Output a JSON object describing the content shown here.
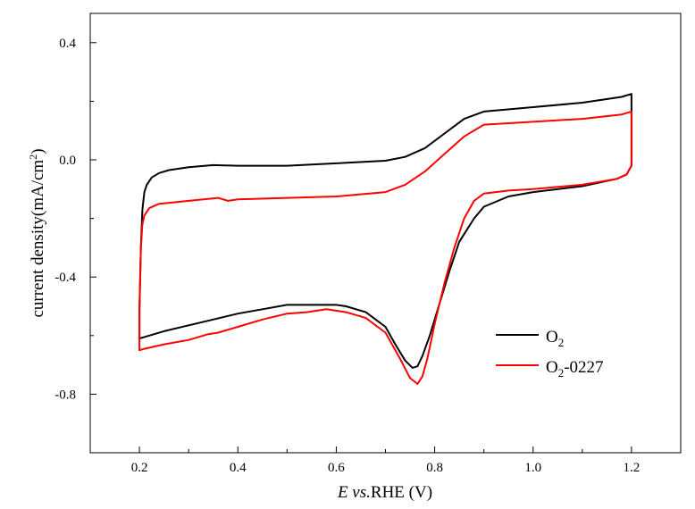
{
  "chart_data": {
    "type": "line",
    "title": "",
    "xlabel": {
      "italic": "E vs.",
      "rest": "RHE (V)"
    },
    "ylabel": {
      "main": "current density(mA/cm",
      "sup": "2",
      "close": ")"
    },
    "xlim": [
      0.1,
      1.3
    ],
    "ylim": [
      -1.0,
      0.5
    ],
    "xticks": [
      "0.2",
      "0.4",
      "0.6",
      "0.8",
      "1.0",
      "1.2"
    ],
    "yticks": [
      "0.4",
      "0.0",
      "-0.4",
      "-0.8"
    ],
    "grid": false,
    "legend_position": "lower-right",
    "series": [
      {
        "name": "O2",
        "legend": {
          "main": "O",
          "sub": "2",
          "suffix": ""
        },
        "color": "#000000",
        "x": [
          0.2,
          0.203,
          0.206,
          0.21,
          0.215,
          0.225,
          0.24,
          0.26,
          0.3,
          0.35,
          0.4,
          0.5,
          0.6,
          0.7,
          0.74,
          0.78,
          0.82,
          0.86,
          0.9,
          1.0,
          1.1,
          1.18,
          1.2,
          1.2,
          1.2,
          1.19,
          1.17,
          1.1,
          1.0,
          0.95,
          0.9,
          0.88,
          0.85,
          0.83,
          0.81,
          0.79,
          0.775,
          0.765,
          0.755,
          0.74,
          0.72,
          0.7,
          0.66,
          0.62,
          0.6,
          0.55,
          0.5,
          0.45,
          0.4,
          0.35,
          0.3,
          0.25,
          0.22,
          0.2,
          0.2
        ],
        "y": [
          -0.52,
          -0.3,
          -0.17,
          -0.11,
          -0.085,
          -0.06,
          -0.045,
          -0.035,
          -0.025,
          -0.018,
          -0.02,
          -0.02,
          -0.012,
          -0.003,
          0.01,
          0.04,
          0.09,
          0.14,
          0.165,
          0.18,
          0.195,
          0.215,
          0.225,
          0.1,
          -0.02,
          -0.05,
          -0.065,
          -0.09,
          -0.11,
          -0.125,
          -0.16,
          -0.2,
          -0.28,
          -0.38,
          -0.49,
          -0.6,
          -0.67,
          -0.705,
          -0.71,
          -0.685,
          -0.63,
          -0.57,
          -0.52,
          -0.5,
          -0.495,
          -0.495,
          -0.495,
          -0.51,
          -0.525,
          -0.545,
          -0.565,
          -0.585,
          -0.6,
          -0.61,
          -0.52
        ]
      },
      {
        "name": "O2-0227",
        "legend": {
          "main": "O",
          "sub": "2",
          "suffix": "-0227"
        },
        "color": "#ff0000",
        "x": [
          0.2,
          0.203,
          0.206,
          0.21,
          0.22,
          0.24,
          0.27,
          0.3,
          0.33,
          0.36,
          0.38,
          0.4,
          0.5,
          0.6,
          0.7,
          0.74,
          0.78,
          0.82,
          0.86,
          0.9,
          1.0,
          1.1,
          1.18,
          1.2,
          1.2,
          1.2,
          1.19,
          1.17,
          1.1,
          1.0,
          0.95,
          0.9,
          0.88,
          0.86,
          0.84,
          0.82,
          0.8,
          0.785,
          0.775,
          0.765,
          0.75,
          0.73,
          0.7,
          0.66,
          0.62,
          0.58,
          0.54,
          0.5,
          0.45,
          0.4,
          0.36,
          0.34,
          0.3,
          0.25,
          0.21,
          0.2,
          0.2
        ],
        "y": [
          -0.5,
          -0.3,
          -0.22,
          -0.19,
          -0.165,
          -0.15,
          -0.145,
          -0.14,
          -0.135,
          -0.13,
          -0.14,
          -0.135,
          -0.13,
          -0.125,
          -0.11,
          -0.085,
          -0.04,
          0.02,
          0.08,
          0.12,
          0.13,
          0.14,
          0.155,
          0.165,
          0.05,
          -0.02,
          -0.05,
          -0.065,
          -0.085,
          -0.1,
          -0.105,
          -0.115,
          -0.14,
          -0.2,
          -0.3,
          -0.42,
          -0.56,
          -0.68,
          -0.74,
          -0.765,
          -0.745,
          -0.68,
          -0.59,
          -0.54,
          -0.52,
          -0.51,
          -0.52,
          -0.525,
          -0.545,
          -0.57,
          -0.59,
          -0.595,
          -0.615,
          -0.63,
          -0.645,
          -0.65,
          -0.5
        ]
      }
    ]
  }
}
